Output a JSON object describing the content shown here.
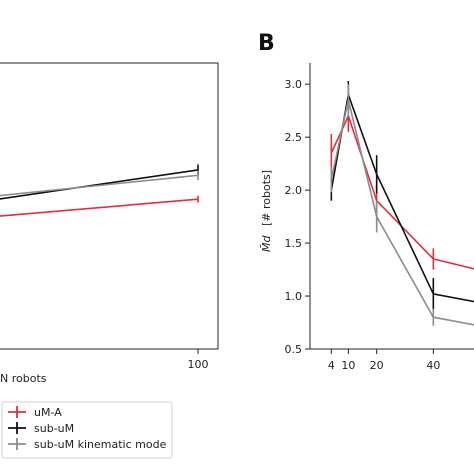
{
  "chart_data": [
    {
      "type": "line",
      "panel_label": "",
      "xlabel": "N robots",
      "ylabel": "",
      "xlim": [
        4,
        100
      ],
      "ylim": [
        0,
        4.2
      ],
      "x_ticks": [
        100
      ],
      "y_ticks": [],
      "grid": false,
      "series": [
        {
          "name": "uM-A",
          "color": "#e0303c",
          "x": [
            4,
            100
          ],
          "y": [
            1.95,
            2.2
          ],
          "err": [
            0,
            0.05
          ]
        },
        {
          "name": "sub-uM",
          "color": "#111111",
          "x": [
            4,
            100
          ],
          "y": [
            2.2,
            2.63
          ],
          "err": [
            0,
            0.08
          ]
        },
        {
          "name": "sub-uM kinematic mode",
          "color": "#8c8c8c",
          "x": [
            4,
            100
          ],
          "y": [
            2.25,
            2.55
          ],
          "err": [
            0,
            0.07
          ]
        }
      ]
    },
    {
      "type": "line",
      "panel_label": "B",
      "xlabel": "",
      "ylabel": "[# robots]",
      "ylabel_symbol": "M̄d",
      "xlim": [
        0,
        60
      ],
      "ylim": [
        0.5,
        3.2
      ],
      "x_ticks": [
        4,
        10,
        20,
        40
      ],
      "y_ticks": [
        "0.5",
        "1.0",
        "1.5",
        "2.0",
        "2.5",
        "3.0"
      ],
      "grid": false,
      "series": [
        {
          "name": "uM-A",
          "color": "#e0303c",
          "x": [
            4,
            10,
            20,
            40,
            60
          ],
          "y": [
            2.35,
            2.7,
            1.9,
            1.35,
            1.22
          ],
          "err": [
            0.18,
            0.15,
            0.15,
            0.1,
            0.1
          ]
        },
        {
          "name": "sub-uM",
          "color": "#111111",
          "x": [
            4,
            10,
            20,
            40,
            60
          ],
          "y": [
            2.0,
            2.9,
            2.15,
            1.02,
            0.92
          ],
          "err": [
            0.1,
            0.13,
            0.18,
            0.15,
            0.1
          ]
        },
        {
          "name": "sub-uM kinematic mode",
          "color": "#8c8c8c",
          "x": [
            4,
            10,
            20,
            40,
            60
          ],
          "y": [
            2.1,
            2.85,
            1.75,
            0.8,
            0.7
          ],
          "err": [
            0.12,
            0.15,
            0.15,
            0.08,
            0.08
          ]
        }
      ]
    }
  ],
  "legend": {
    "entries": [
      {
        "label": "uM-A",
        "color": "#e0303c"
      },
      {
        "label": "sub-uM",
        "color": "#111111"
      },
      {
        "label": "sub-uM kinematic mode",
        "color": "#8c8c8c"
      }
    ]
  }
}
